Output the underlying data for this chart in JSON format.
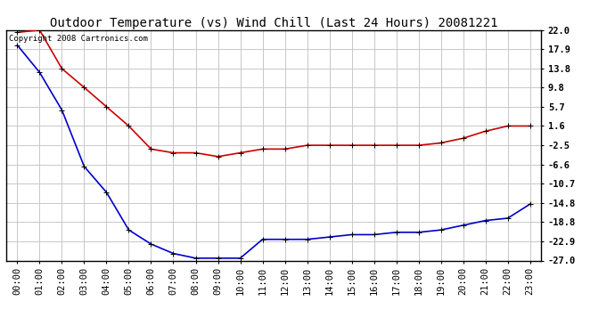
{
  "title": "Outdoor Temperature (vs) Wind Chill (Last 24 Hours) 20081221",
  "copyright_text": "Copyright 2008 Cartronics.com",
  "x_labels": [
    "00:00",
    "01:00",
    "02:00",
    "03:00",
    "04:00",
    "05:00",
    "06:00",
    "07:00",
    "08:00",
    "09:00",
    "10:00",
    "11:00",
    "12:00",
    "13:00",
    "14:00",
    "15:00",
    "16:00",
    "17:00",
    "18:00",
    "19:00",
    "20:00",
    "21:00",
    "22:00",
    "23:00"
  ],
  "red_data": [
    21.5,
    22.0,
    13.8,
    9.8,
    5.7,
    1.6,
    -3.3,
    -4.1,
    -4.1,
    -4.9,
    -4.1,
    -3.3,
    -3.3,
    -2.5,
    -2.5,
    -2.5,
    -2.5,
    -2.5,
    -2.5,
    -2.0,
    -1.0,
    0.5,
    1.6,
    1.6
  ],
  "blue_data": [
    18.8,
    13.0,
    5.0,
    -7.0,
    -12.5,
    -20.5,
    -23.5,
    -25.5,
    -26.5,
    -26.5,
    -26.5,
    -22.5,
    -22.5,
    -22.5,
    -22.0,
    -21.5,
    -21.5,
    -21.0,
    -21.0,
    -20.5,
    -19.5,
    -18.5,
    -18.0,
    -15.0
  ],
  "ylim_min": -27.0,
  "ylim_max": 22.0,
  "ytick_values": [
    22.0,
    17.9,
    13.8,
    9.8,
    5.7,
    1.6,
    -2.5,
    -6.6,
    -10.7,
    -14.8,
    -18.8,
    -22.9,
    -27.0
  ],
  "bg_color": "#ffffff",
  "plot_bg_color": "#ffffff",
  "grid_color": "#c8c8c8",
  "red_line_color": "#cc0000",
  "blue_line_color": "#0000cc",
  "title_fontsize": 10,
  "tick_fontsize": 7.5,
  "copyright_fontsize": 6.5,
  "marker": "+",
  "marker_size": 5,
  "line_width": 1.2
}
